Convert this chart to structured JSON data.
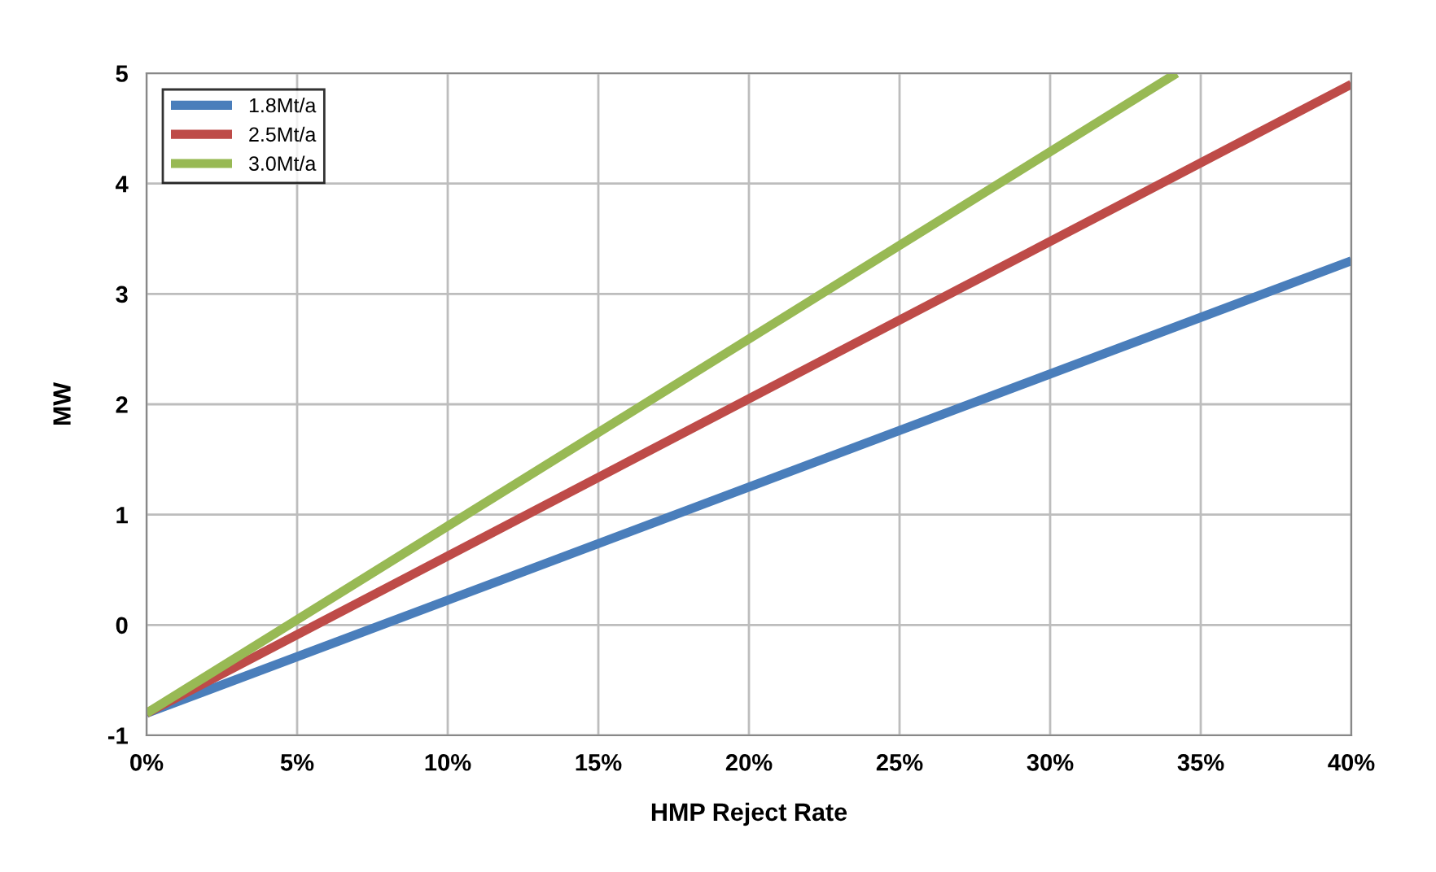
{
  "chart_data": {
    "type": "line",
    "xlabel": "HMP Reject Rate",
    "ylabel": "MW",
    "series": [
      {
        "name": "1.8Mt/a",
        "color": "#4a7ebb",
        "x": [
          0,
          40
        ],
        "values": [
          -0.8,
          3.3
        ]
      },
      {
        "name": "2.5Mt/a",
        "color": "#be4b48",
        "x": [
          0,
          40
        ],
        "values": [
          -0.8,
          4.9
        ]
      },
      {
        "name": "3.0Mt/a",
        "color": "#98b954",
        "x": [
          0,
          34.2
        ],
        "values": [
          -0.8,
          5.0
        ]
      }
    ],
    "xlim": [
      0,
      40
    ],
    "ylim": [
      -1,
      5
    ],
    "xticks": [
      {
        "value": 0,
        "label": "0%"
      },
      {
        "value": 5,
        "label": "5%"
      },
      {
        "value": 10,
        "label": "10%"
      },
      {
        "value": 15,
        "label": "15%"
      },
      {
        "value": 20,
        "label": "20%"
      },
      {
        "value": 25,
        "label": "25%"
      },
      {
        "value": 30,
        "label": "30%"
      },
      {
        "value": 35,
        "label": "35%"
      },
      {
        "value": 40,
        "label": "40%"
      }
    ],
    "yticks": [
      -1,
      0,
      1,
      2,
      3,
      4,
      5
    ],
    "grid": true,
    "legend": "top left",
    "marker": "none",
    "line_style": "solid"
  }
}
